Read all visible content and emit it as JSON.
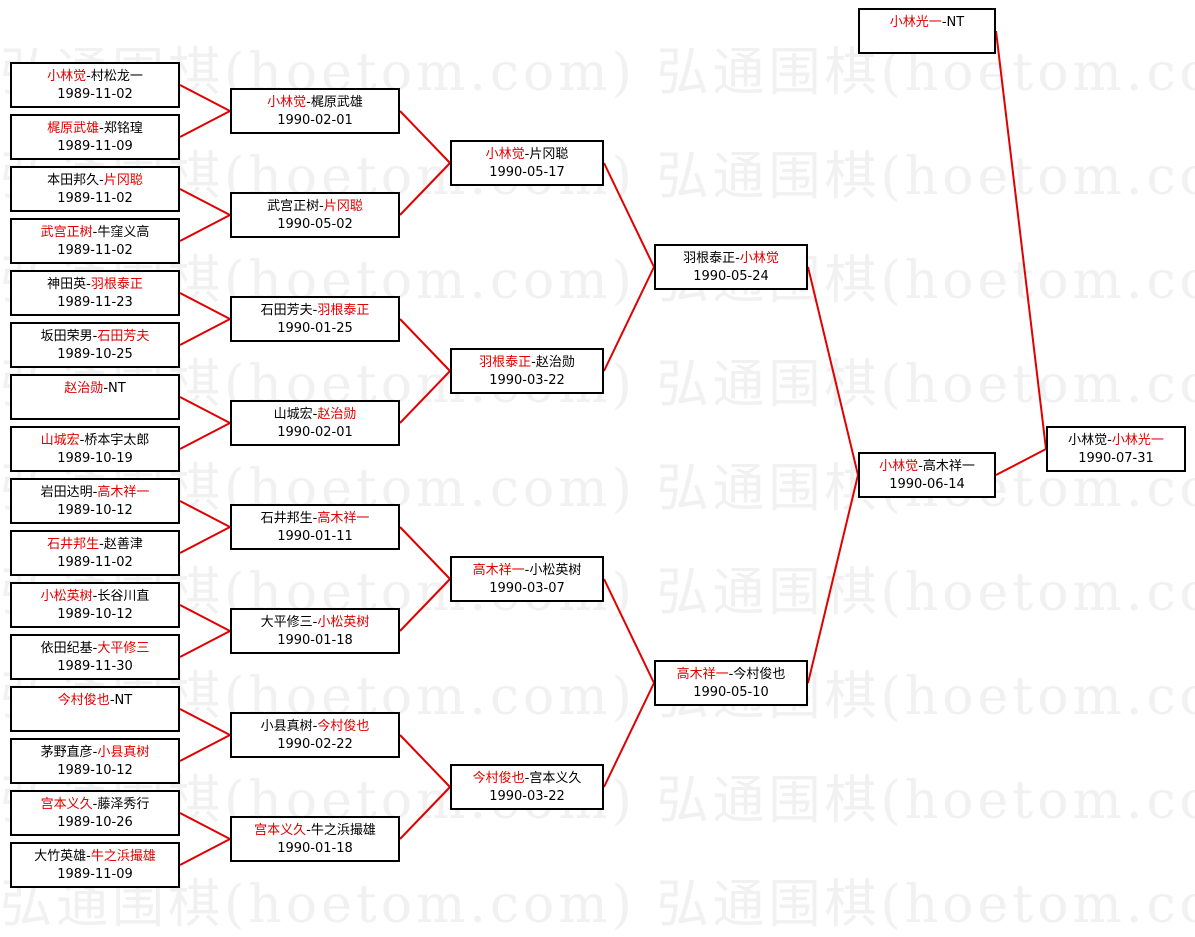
{
  "watermark": "弘通围棋(hoetom.com)",
  "colors": {
    "winner": "#e00000",
    "line": "#e00000",
    "border": "#000000"
  },
  "rounds": [
    [
      {
        "left": "小林觉",
        "right": "村松龙一",
        "winner": "left",
        "date": "1989-11-02"
      },
      {
        "left": "梶原武雄",
        "right": "郑铭瑝",
        "winner": "left",
        "date": "1989-11-09"
      },
      {
        "left": "本田邦久",
        "right": "片冈聪",
        "winner": "right",
        "date": "1989-11-02"
      },
      {
        "left": "武宫正树",
        "right": "牛窪义高",
        "winner": "left",
        "date": "1989-11-02"
      },
      {
        "left": "神田英",
        "right": "羽根泰正",
        "winner": "right",
        "date": "1989-11-23"
      },
      {
        "left": "坂田荣男",
        "right": "石田芳夫",
        "winner": "right",
        "date": "1989-10-25"
      },
      {
        "left": "赵治勋",
        "right": "NT",
        "winner": "left",
        "date": ""
      },
      {
        "left": "山城宏",
        "right": "桥本宇太郎",
        "winner": "left",
        "date": "1989-10-19"
      },
      {
        "left": "岩田达明",
        "right": "高木祥一",
        "winner": "right",
        "date": "1989-10-12"
      },
      {
        "left": "石井邦生",
        "right": "赵善津",
        "winner": "left",
        "date": "1989-11-02"
      },
      {
        "left": "小松英树",
        "right": "长谷川直",
        "winner": "left",
        "date": "1989-10-12"
      },
      {
        "left": "依田纪基",
        "right": "大平修三",
        "winner": "right",
        "date": "1989-11-30"
      },
      {
        "left": "今村俊也",
        "right": "NT",
        "winner": "left",
        "date": ""
      },
      {
        "left": "茅野直彦",
        "right": "小县真树",
        "winner": "right",
        "date": "1989-10-12"
      },
      {
        "left": "宫本义久",
        "right": "藤泽秀行",
        "winner": "left",
        "date": "1989-10-26"
      },
      {
        "left": "大竹英雄",
        "right": "牛之浜撮雄",
        "winner": "right",
        "date": "1989-11-09"
      }
    ],
    [
      {
        "left": "小林觉",
        "right": "梶原武雄",
        "winner": "left",
        "date": "1990-02-01"
      },
      {
        "left": "武宫正树",
        "right": "片冈聪",
        "winner": "right",
        "date": "1990-05-02"
      },
      {
        "left": "石田芳夫",
        "right": "羽根泰正",
        "winner": "right",
        "date": "1990-01-25"
      },
      {
        "left": "山城宏",
        "right": "赵治勋",
        "winner": "right",
        "date": "1990-02-01"
      },
      {
        "left": "石井邦生",
        "right": "高木祥一",
        "winner": "right",
        "date": "1990-01-11"
      },
      {
        "left": "大平修三",
        "right": "小松英树",
        "winner": "right",
        "date": "1990-01-18"
      },
      {
        "left": "小县真树",
        "right": "今村俊也",
        "winner": "right",
        "date": "1990-02-22"
      },
      {
        "left": "宫本义久",
        "right": "牛之浜撮雄",
        "winner": "left",
        "date": "1990-01-18"
      }
    ],
    [
      {
        "left": "小林觉",
        "right": "片冈聪",
        "winner": "left",
        "date": "1990-05-17"
      },
      {
        "left": "羽根泰正",
        "right": "赵治勋",
        "winner": "left",
        "date": "1990-03-22"
      },
      {
        "left": "高木祥一",
        "right": "小松英树",
        "winner": "left",
        "date": "1990-03-07"
      },
      {
        "left": "今村俊也",
        "right": "宫本义久",
        "winner": "left",
        "date": "1990-03-22"
      }
    ],
    [
      {
        "left": "羽根泰正",
        "right": "小林觉",
        "winner": "right",
        "date": "1990-05-24"
      },
      {
        "left": "高木祥一",
        "right": "今村俊也",
        "winner": "left",
        "date": "1990-05-10"
      }
    ],
    [
      {
        "left": "小林觉",
        "right": "高木祥一",
        "winner": "left",
        "date": "1990-06-14"
      }
    ]
  ],
  "seed": {
    "left": "小林光一",
    "right": "NT",
    "winner": "left",
    "date": ""
  },
  "final": {
    "left": "小林觉",
    "right": "小林光一",
    "winner": "right",
    "date": "1990-07-31"
  }
}
